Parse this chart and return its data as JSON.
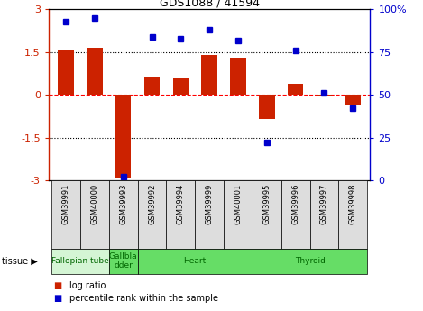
{
  "title": "GDS1088 / 41594",
  "samples": [
    "GSM39991",
    "GSM40000",
    "GSM39993",
    "GSM39992",
    "GSM39994",
    "GSM39999",
    "GSM40001",
    "GSM39995",
    "GSM39996",
    "GSM39997",
    "GSM39998"
  ],
  "log_ratio": [
    1.55,
    1.65,
    -2.9,
    0.65,
    0.6,
    1.4,
    1.3,
    -0.85,
    0.4,
    -0.05,
    -0.35
  ],
  "percentile": [
    93,
    95,
    2,
    84,
    83,
    88,
    82,
    22,
    76,
    51,
    42
  ],
  "tissues": [
    {
      "label": "Fallopian tube",
      "start": 0,
      "end": 2,
      "color": "#d4f5d4"
    },
    {
      "label": "Gallbla\ndder",
      "start": 2,
      "end": 3,
      "color": "#66dd66"
    },
    {
      "label": "Heart",
      "start": 3,
      "end": 7,
      "color": "#66dd66"
    },
    {
      "label": "Thyroid",
      "start": 7,
      "end": 11,
      "color": "#66dd66"
    }
  ],
  "bar_color": "#cc2200",
  "dot_color": "#0000cc",
  "ylim_left": [
    -3,
    3
  ],
  "ylim_right": [
    0,
    100
  ],
  "yticks_left": [
    -3,
    -1.5,
    0,
    1.5,
    3
  ],
  "yticks_right": [
    0,
    25,
    50,
    75,
    100
  ],
  "hlines_dot": [
    -1.5,
    1.5
  ],
  "hline_zero": 0,
  "background_color": "#ffffff",
  "plot_bg": "#ffffff",
  "label_bg": "#dddddd"
}
